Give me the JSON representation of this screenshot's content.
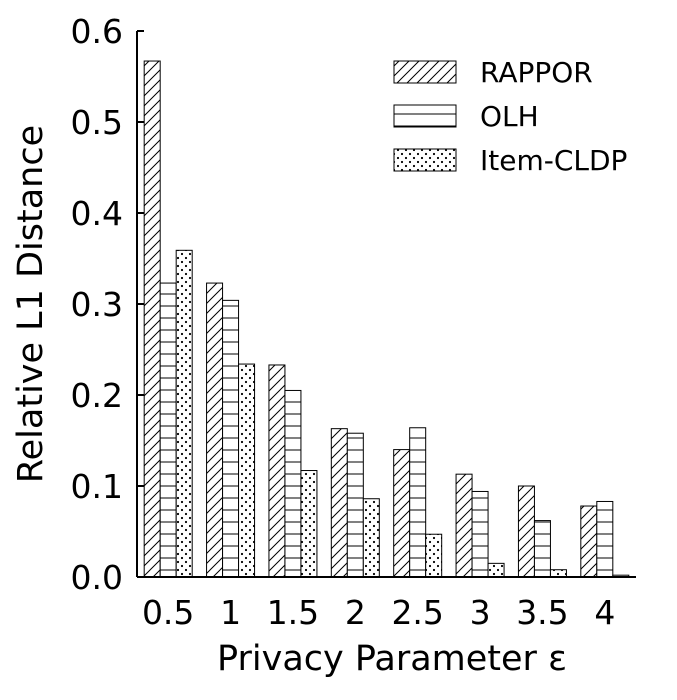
{
  "chart_data": {
    "type": "bar",
    "title": "",
    "xlabel": "Privacy Parameter ε",
    "ylabel": "Relative L1 Distance",
    "categories": [
      "0.5",
      "1",
      "1.5",
      "2",
      "2.5",
      "3",
      "3.5",
      "4"
    ],
    "series": [
      {
        "name": "RAPPOR",
        "pattern": "diagonal-hatch",
        "values": [
          0.567,
          0.323,
          0.233,
          0.163,
          0.14,
          0.113,
          0.1,
          0.078
        ]
      },
      {
        "name": "OLH",
        "pattern": "horizontal-hatch",
        "values": [
          0.323,
          0.304,
          0.205,
          0.158,
          0.164,
          0.094,
          0.062,
          0.083
        ]
      },
      {
        "name": "Item-CLDP",
        "pattern": "dots",
        "values": [
          0.359,
          0.234,
          0.117,
          0.086,
          0.047,
          0.015,
          0.008,
          0.002
        ]
      }
    ],
    "ylim": [
      0,
      0.6
    ],
    "yticks": [
      "0.0",
      "0.1",
      "0.2",
      "0.3",
      "0.4",
      "0.5",
      "0.6"
    ],
    "legend": "top-right",
    "grid": false,
    "colors": {
      "fill": "#ffffff",
      "stroke": "#000000"
    }
  }
}
